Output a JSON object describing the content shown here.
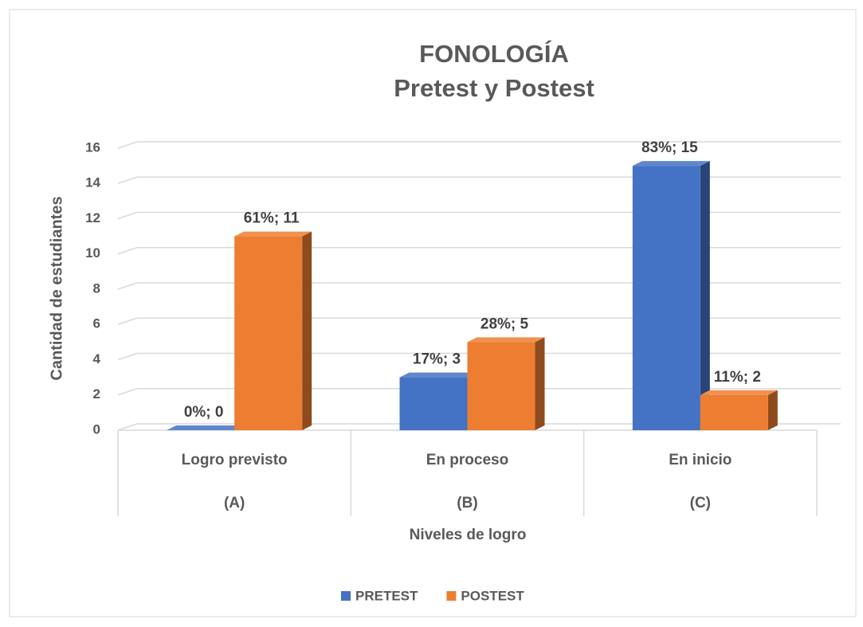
{
  "chart_data": {
    "type": "bar3d",
    "title": [
      "FONOLOGÍA",
      "Pretest y Postest"
    ],
    "y_axis_label": "Cantidad de estudiantes",
    "x_axis_label": "Niveles de logro",
    "categories": [
      "Logro previsto",
      "En proceso",
      "En inicio"
    ],
    "category_codes": [
      "(A)",
      "(B)",
      "(C)"
    ],
    "series": [
      {
        "name": "PRETEST",
        "color": "#4472c4",
        "values": [
          0,
          3,
          15
        ],
        "value_labels": [
          "0%; 0",
          "17%; 3",
          "83%; 15"
        ]
      },
      {
        "name": "POSTEST",
        "color": "#ed7d31",
        "values": [
          11,
          5,
          2
        ],
        "value_labels": [
          "61%; 11",
          "28%; 5",
          "11%; 2"
        ]
      }
    ],
    "ylim": [
      0,
      16
    ],
    "yticks": [
      0,
      2,
      4,
      6,
      8,
      10,
      12,
      14,
      16
    ],
    "grid": true,
    "legend": "bottom"
  }
}
